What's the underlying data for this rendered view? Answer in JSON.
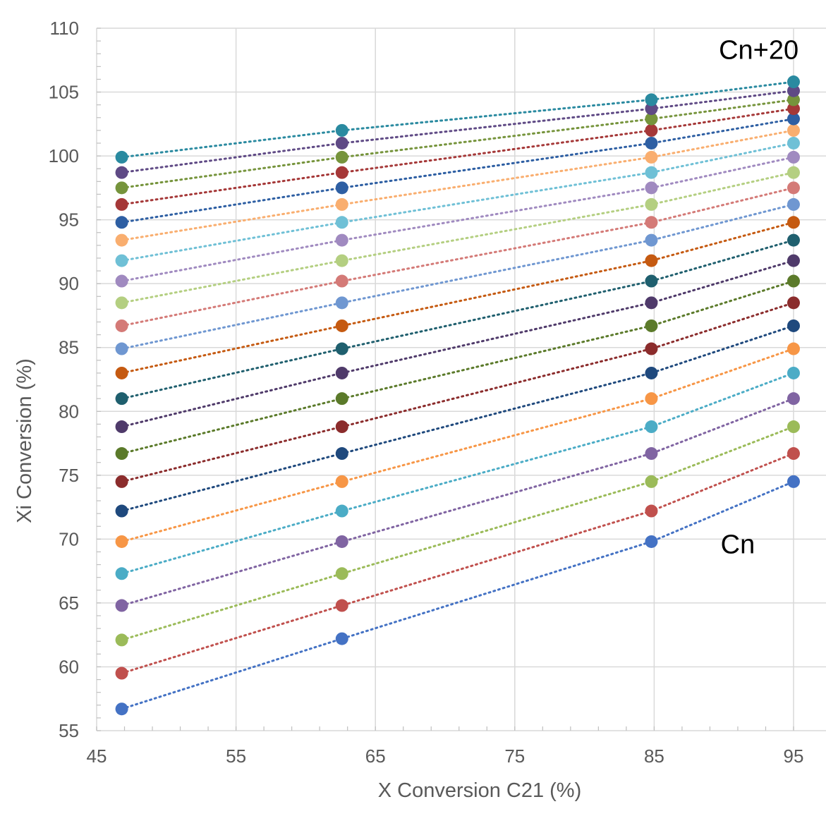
{
  "chart_data": {
    "type": "scatter",
    "title": "",
    "xlabel": "X Conversion C21 (%)",
    "ylabel": "Xi Conversion (%)",
    "xlim": [
      45,
      96
    ],
    "ylim": [
      55,
      110
    ],
    "xticks": [
      45,
      55,
      65,
      75,
      85,
      95
    ],
    "yticks": [
      55,
      60,
      65,
      70,
      75,
      80,
      85,
      90,
      95,
      100,
      105,
      110
    ],
    "grid": true,
    "legend": "none",
    "x": [
      46.8,
      62.6,
      84.8,
      95
    ],
    "annotations": [
      {
        "text": "Cn+20",
        "x": 92.5,
        "y": 107.6
      },
      {
        "text": "Cn",
        "x": 91.0,
        "y": 68.9
      }
    ],
    "series": [
      {
        "color": "#4472c4",
        "values": [
          56.7,
          62.2,
          69.8,
          74.5
        ]
      },
      {
        "color": "#c0504d",
        "values": [
          59.5,
          64.8,
          72.2,
          76.7
        ]
      },
      {
        "color": "#9bbb59",
        "values": [
          62.1,
          67.3,
          74.5,
          78.8
        ]
      },
      {
        "color": "#8064a2",
        "values": [
          64.8,
          69.8,
          76.7,
          81.0
        ]
      },
      {
        "color": "#4bacc6",
        "values": [
          67.3,
          72.2,
          78.8,
          83.0
        ]
      },
      {
        "color": "#f79646",
        "values": [
          69.8,
          74.5,
          81.0,
          84.9
        ]
      },
      {
        "color": "#1f497d",
        "values": [
          72.2,
          76.7,
          83.0,
          86.7
        ]
      },
      {
        "color": "#8b2c2c",
        "values": [
          74.5,
          78.8,
          84.9,
          88.5
        ]
      },
      {
        "color": "#5b7a2a",
        "values": [
          76.7,
          81.0,
          86.7,
          90.2
        ]
      },
      {
        "color": "#4f3a6a",
        "values": [
          78.8,
          83.0,
          88.5,
          91.8
        ]
      },
      {
        "color": "#1f5f6e",
        "values": [
          81.0,
          84.9,
          90.2,
          93.4
        ]
      },
      {
        "color": "#c55a11",
        "values": [
          83.0,
          86.7,
          91.8,
          94.8
        ]
      },
      {
        "color": "#6f97d1",
        "values": [
          84.9,
          88.5,
          93.4,
          96.2
        ]
      },
      {
        "color": "#d47a77",
        "values": [
          86.7,
          90.2,
          94.8,
          97.5
        ]
      },
      {
        "color": "#b4cf81",
        "values": [
          88.5,
          91.8,
          96.2,
          98.7
        ]
      },
      {
        "color": "#a08ac0",
        "values": [
          90.2,
          93.4,
          97.5,
          99.9
        ]
      },
      {
        "color": "#6fc0d6",
        "values": [
          91.8,
          94.8,
          98.7,
          101.0
        ]
      },
      {
        "color": "#f9ae6f",
        "values": [
          93.4,
          96.2,
          99.9,
          102.0
        ]
      },
      {
        "color": "#2e5fa3",
        "values": [
          94.8,
          97.5,
          101.0,
          102.9
        ]
      },
      {
        "color": "#a53838",
        "values": [
          96.2,
          98.7,
          102.0,
          103.7
        ]
      },
      {
        "color": "#76943c",
        "values": [
          97.5,
          99.9,
          102.9,
          104.4
        ]
      },
      {
        "color": "#5f4a85",
        "values": [
          98.7,
          101.0,
          103.7,
          105.1
        ]
      },
      {
        "color": "#2a8aa0",
        "values": [
          99.9,
          102.0,
          104.4,
          105.8
        ]
      }
    ]
  }
}
